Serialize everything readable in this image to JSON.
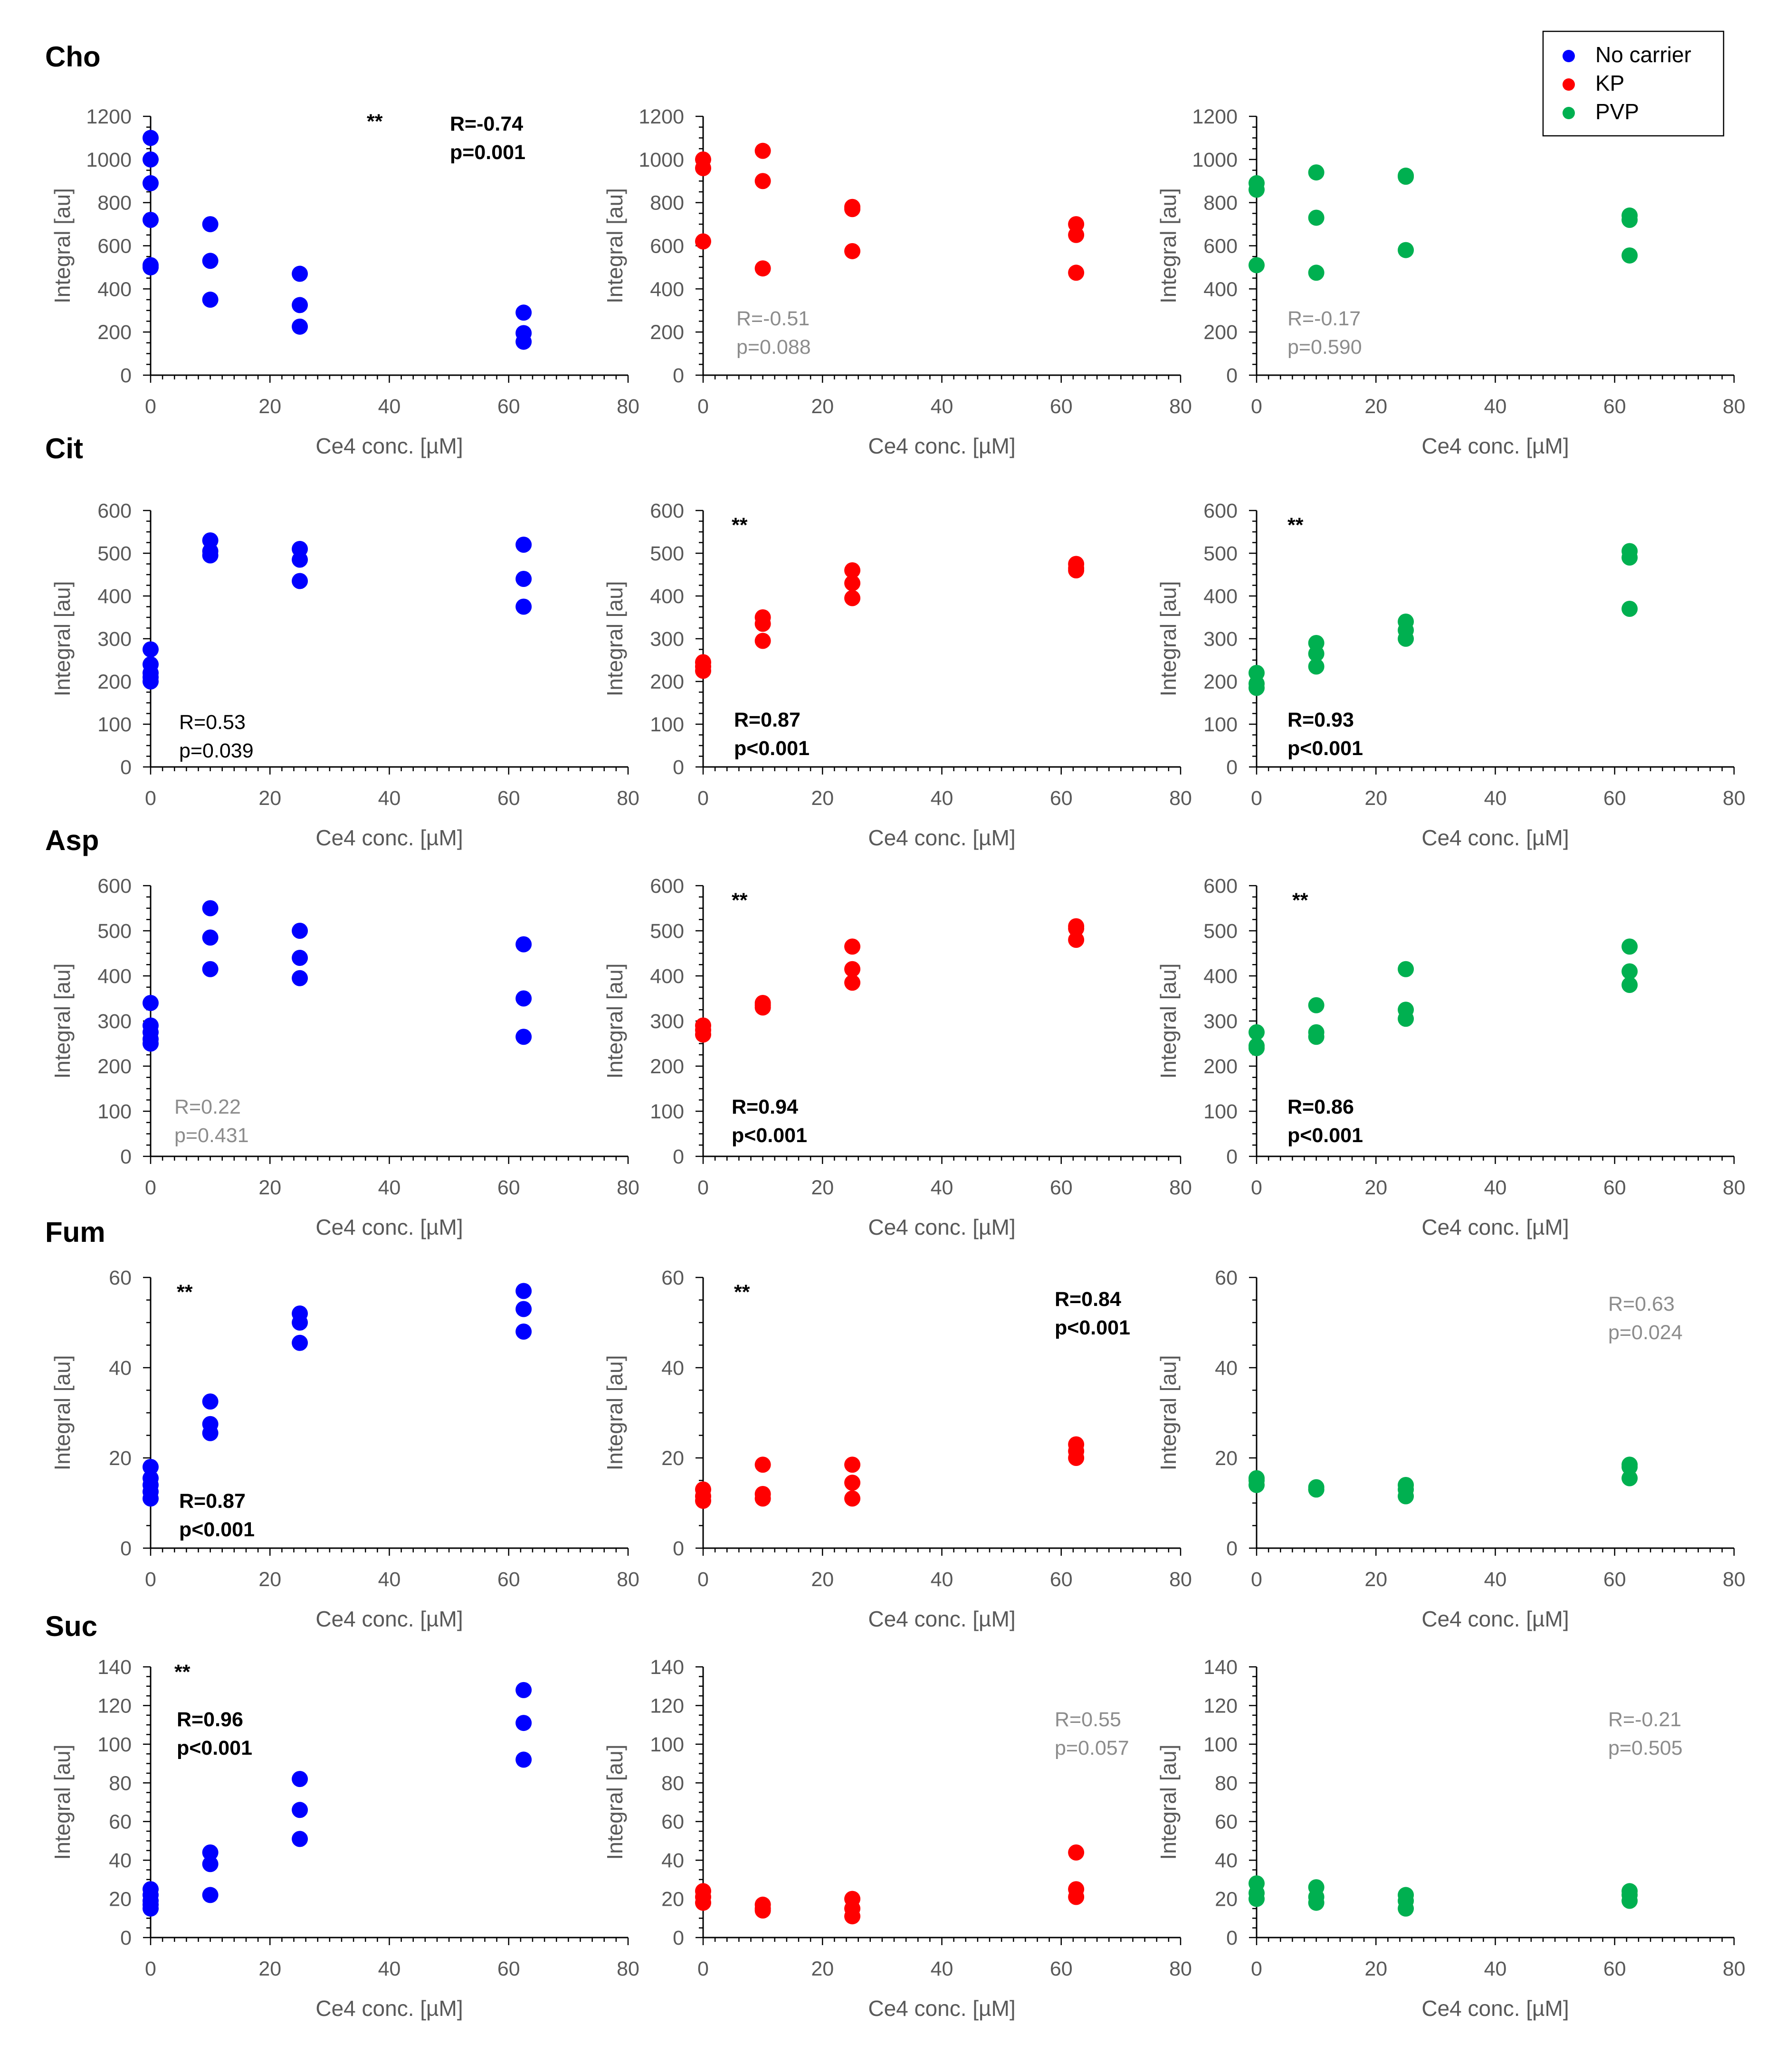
{
  "legend": {
    "placement": "top-right",
    "entries": [
      {
        "label": "No carrier",
        "color": "#0000ff"
      },
      {
        "label": "KP",
        "color": "#ff0000"
      },
      {
        "label": "PVP",
        "color": "#00b050"
      }
    ]
  },
  "chart_data": [
    {
      "type": "scatter",
      "row_title": "Cho",
      "xlabel": "Ce4 conc. [µM]",
      "ylabel": "Integral [au]",
      "xlim": [
        0,
        80
      ],
      "ylim": [
        0,
        1200
      ],
      "y_step": 200,
      "color": "#0000ff",
      "stats": {
        "r": "R=-0.74",
        "p": "p=0.001",
        "significant": true,
        "stars": "**"
      },
      "x": [
        0,
        0,
        0,
        0,
        0,
        0,
        10,
        10,
        10,
        25,
        25,
        25,
        62.5,
        62.5,
        62.5
      ],
      "y": [
        1100,
        1000,
        890,
        720,
        510,
        500,
        700,
        530,
        350,
        470,
        325,
        225,
        290,
        195,
        155
      ]
    },
    {
      "type": "scatter",
      "row_title": "",
      "xlabel": "Ce4 conc. [µM]",
      "ylabel": "Integral [au]",
      "xlim": [
        0,
        80
      ],
      "ylim": [
        0,
        1200
      ],
      "y_step": 200,
      "color": "#ff0000",
      "stats": {
        "r": "R=-0.51",
        "p": "p=0.088",
        "significant": false,
        "stars": ""
      },
      "x": [
        0,
        0,
        0,
        10,
        10,
        10,
        25,
        25,
        25,
        62.5,
        62.5,
        62.5
      ],
      "y": [
        1000,
        960,
        620,
        1040,
        900,
        495,
        780,
        770,
        575,
        700,
        650,
        475
      ]
    },
    {
      "type": "scatter",
      "row_title": "",
      "xlabel": "Ce4 conc. [µM]",
      "ylabel": "Integral [au]",
      "xlim": [
        0,
        80
      ],
      "ylim": [
        0,
        1200
      ],
      "y_step": 200,
      "color": "#00b050",
      "stats": {
        "r": "R=-0.17",
        "p": "p=0.590",
        "significant": false,
        "stars": ""
      },
      "x": [
        0,
        0,
        0,
        10,
        10,
        10,
        25,
        25,
        25,
        62.5,
        62.5,
        62.5
      ],
      "y": [
        890,
        860,
        510,
        940,
        730,
        475,
        925,
        920,
        580,
        740,
        720,
        555
      ]
    },
    {
      "type": "scatter",
      "row_title": "Cit",
      "xlabel": "Ce4 conc. [µM]",
      "ylabel": "Integral [au]",
      "xlim": [
        0,
        80
      ],
      "ylim": [
        0,
        600
      ],
      "y_step": 100,
      "color": "#0000ff",
      "stats": {
        "r": "R=0.53",
        "p": "p=0.039",
        "significant": true,
        "stars": ""
      },
      "x": [
        0,
        0,
        0,
        0,
        0,
        10,
        10,
        10,
        25,
        25,
        25,
        62.5,
        62.5,
        62.5
      ],
      "y": [
        275,
        240,
        220,
        210,
        200,
        530,
        505,
        495,
        510,
        485,
        435,
        520,
        440,
        375
      ]
    },
    {
      "type": "scatter",
      "row_title": "",
      "xlabel": "Ce4 conc. [µM]",
      "ylabel": "Integral [au]",
      "xlim": [
        0,
        80
      ],
      "ylim": [
        0,
        600
      ],
      "y_step": 100,
      "color": "#ff0000",
      "stats": {
        "r": "R=0.87",
        "p": "p<0.001",
        "significant": true,
        "stars": "**"
      },
      "x": [
        0,
        0,
        0,
        10,
        10,
        10,
        25,
        25,
        25,
        62.5,
        62.5,
        62.5
      ],
      "y": [
        245,
        235,
        225,
        350,
        335,
        295,
        460,
        430,
        395,
        475,
        465,
        460
      ]
    },
    {
      "type": "scatter",
      "row_title": "",
      "xlabel": "Ce4 conc. [µM]",
      "ylabel": "Integral [au]",
      "xlim": [
        0,
        80
      ],
      "ylim": [
        0,
        600
      ],
      "y_step": 100,
      "color": "#00b050",
      "stats": {
        "r": "R=0.93",
        "p": "p<0.001",
        "significant": true,
        "stars": "**"
      },
      "x": [
        0,
        0,
        0,
        10,
        10,
        10,
        25,
        25,
        25,
        62.5,
        62.5,
        62.5
      ],
      "y": [
        220,
        195,
        185,
        290,
        265,
        235,
        340,
        320,
        300,
        505,
        490,
        370
      ]
    },
    {
      "type": "scatter",
      "row_title": "Asp",
      "xlabel": "Ce4 conc. [µM]",
      "ylabel": "Integral [au]",
      "xlim": [
        0,
        80
      ],
      "ylim": [
        0,
        600
      ],
      "y_step": 100,
      "color": "#0000ff",
      "stats": {
        "r": "R=0.22",
        "p": "p=0.431",
        "significant": false,
        "stars": ""
      },
      "x": [
        0,
        0,
        0,
        0,
        0,
        10,
        10,
        10,
        25,
        25,
        25,
        62.5,
        62.5,
        62.5
      ],
      "y": [
        340,
        290,
        275,
        260,
        250,
        550,
        485,
        415,
        500,
        440,
        395,
        470,
        350,
        265
      ]
    },
    {
      "type": "scatter",
      "row_title": "",
      "xlabel": "Ce4 conc. [µM]",
      "ylabel": "Integral [au]",
      "xlim": [
        0,
        80
      ],
      "ylim": [
        0,
        600
      ],
      "y_step": 100,
      "color": "#ff0000",
      "stats": {
        "r": "R=0.94",
        "p": "p<0.001",
        "significant": true,
        "stars": "**"
      },
      "x": [
        0,
        0,
        0,
        10,
        10,
        10,
        25,
        25,
        25,
        62.5,
        62.5,
        62.5
      ],
      "y": [
        290,
        280,
        270,
        340,
        335,
        330,
        465,
        415,
        385,
        510,
        505,
        480
      ]
    },
    {
      "type": "scatter",
      "row_title": "",
      "xlabel": "Ce4 conc. [µM]",
      "ylabel": "Integral [au]",
      "xlim": [
        0,
        80
      ],
      "ylim": [
        0,
        600
      ],
      "y_step": 100,
      "color": "#00b050",
      "stats": {
        "r": "R=0.86",
        "p": "p<0.001",
        "significant": true,
        "stars": "**"
      },
      "x": [
        0,
        0,
        0,
        10,
        10,
        10,
        25,
        25,
        25,
        62.5,
        62.5,
        62.5
      ],
      "y": [
        275,
        245,
        240,
        335,
        275,
        265,
        415,
        325,
        305,
        465,
        410,
        380
      ]
    },
    {
      "type": "scatter",
      "row_title": "Fum",
      "xlabel": "Ce4 conc. [µM]",
      "ylabel": "Integral [au]",
      "xlim": [
        0,
        80
      ],
      "ylim": [
        0,
        60
      ],
      "y_step": 20,
      "color": "#0000ff",
      "stats": {
        "r": "R=0.87",
        "p": "p<0.001",
        "significant": true,
        "stars": "**"
      },
      "x": [
        0,
        0,
        0,
        0,
        0,
        10,
        10,
        10,
        25,
        25,
        25,
        62.5,
        62.5,
        62.5
      ],
      "y": [
        18,
        15.5,
        14,
        12.5,
        11,
        32.5,
        27.5,
        25.5,
        52,
        50,
        45.5,
        57,
        53,
        48
      ]
    },
    {
      "type": "scatter",
      "row_title": "",
      "xlabel": "Ce4 conc. [µM]",
      "ylabel": "Integral [au]",
      "xlim": [
        0,
        80
      ],
      "ylim": [
        0,
        60
      ],
      "y_step": 20,
      "color": "#ff0000",
      "stats": {
        "r": "R=0.84",
        "p": "p<0.001",
        "significant": true,
        "stars": "**"
      },
      "x": [
        0,
        0,
        0,
        10,
        10,
        10,
        25,
        25,
        25,
        62.5,
        62.5,
        62.5
      ],
      "y": [
        13,
        11.5,
        10.5,
        18.5,
        12,
        11,
        18.5,
        14.5,
        11,
        23,
        21.5,
        20
      ]
    },
    {
      "type": "scatter",
      "row_title": "",
      "xlabel": "Ce4 conc. [µM]",
      "ylabel": "Integral [au]",
      "xlim": [
        0,
        80
      ],
      "ylim": [
        0,
        60
      ],
      "y_step": 20,
      "color": "#00b050",
      "stats": {
        "r": "R=0.63",
        "p": "p=0.024",
        "significant": false,
        "stars": ""
      },
      "x": [
        0,
        0,
        0,
        10,
        10,
        10,
        25,
        25,
        25,
        62.5,
        62.5,
        62.5
      ],
      "y": [
        15.5,
        15,
        14,
        13.5,
        13,
        13,
        14,
        13,
        11.5,
        18.5,
        18,
        15.5
      ]
    },
    {
      "type": "scatter",
      "row_title": "Suc",
      "xlabel": "Ce4 conc. [µM]",
      "ylabel": "Integral [au]",
      "xlim": [
        0,
        80
      ],
      "ylim": [
        0,
        140
      ],
      "y_step": 20,
      "color": "#0000ff",
      "stats": {
        "r": "R=0.96",
        "p": "p<0.001",
        "significant": true,
        "stars": "**"
      },
      "x": [
        0,
        0,
        0,
        0,
        0,
        10,
        10,
        10,
        25,
        25,
        25,
        62.5,
        62.5,
        62.5
      ],
      "y": [
        25,
        22,
        19,
        17,
        15,
        44,
        38,
        22,
        82,
        66,
        51,
        128,
        111,
        92
      ]
    },
    {
      "type": "scatter",
      "row_title": "",
      "xlabel": "Ce4 conc. [µM]",
      "ylabel": "Integral [au]",
      "xlim": [
        0,
        80
      ],
      "ylim": [
        0,
        140
      ],
      "y_step": 20,
      "color": "#ff0000",
      "stats": {
        "r": "R=0.55",
        "p": "p=0.057",
        "significant": false,
        "stars": ""
      },
      "x": [
        0,
        0,
        0,
        10,
        10,
        10,
        25,
        25,
        25,
        62.5,
        62.5,
        62.5
      ],
      "y": [
        24,
        21,
        18,
        17,
        15,
        14,
        20,
        15,
        11,
        44,
        25,
        21
      ]
    },
    {
      "type": "scatter",
      "row_title": "",
      "xlabel": "Ce4 conc. [µM]",
      "ylabel": "Integral [au]",
      "xlim": [
        0,
        80
      ],
      "ylim": [
        0,
        140
      ],
      "y_step": 20,
      "color": "#00b050",
      "stats": {
        "r": "R=-0.21",
        "p": "p=0.505",
        "significant": false,
        "stars": ""
      },
      "x": [
        0,
        0,
        0,
        10,
        10,
        10,
        25,
        25,
        25,
        62.5,
        62.5,
        62.5
      ],
      "y": [
        28,
        23,
        20,
        26,
        21,
        18,
        22,
        19,
        15,
        24,
        22,
        19
      ]
    }
  ]
}
